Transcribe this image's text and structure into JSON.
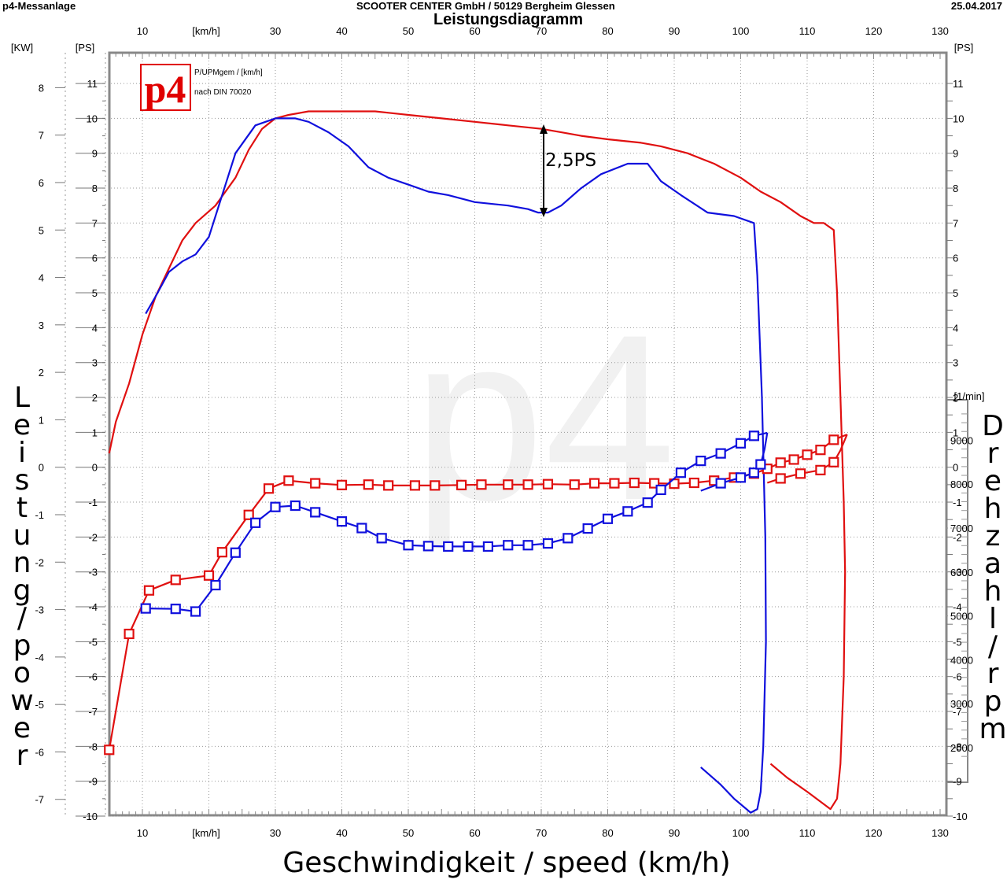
{
  "header": {
    "app_name": "p4-Messanlage",
    "company": "SCOOTER CENTER GmbH / 50129 Bergheim Glessen",
    "date": "25.04.2017"
  },
  "watermark": "p4",
  "logo": {
    "text": "p4",
    "color": "#e00000"
  },
  "legend_note": {
    "line1": "P/UPMgem / [km/h]",
    "line2": "nach DIN 70020"
  },
  "annotation": "2,5PS",
  "y_label_left_letters": [
    "L",
    "e",
    "i",
    "s",
    "t",
    "u",
    "n",
    "g",
    "/",
    "p",
    "o",
    "w",
    "e",
    "r"
  ],
  "y_label_right_letters": [
    "D",
    "r",
    "e",
    "h",
    "z",
    "a",
    "h",
    "l",
    "/",
    "r",
    "p",
    "m"
  ],
  "colors": {
    "red": "#e01010",
    "blue": "#1010dd",
    "grid": "#999999",
    "frame": "#888888"
  },
  "chart_data": {
    "type": "line",
    "title": "Leistungsdiagramm",
    "xlabel": "Geschwindigkeit / speed (km/h)",
    "x_unit": "[km/h]",
    "xlim": [
      5,
      130
    ],
    "x_ticks": [
      10,
      30,
      40,
      50,
      60,
      70,
      80,
      90,
      100,
      110,
      120,
      130
    ],
    "y_ps": {
      "unit": "[PS]",
      "lim": [
        -10,
        12
      ],
      "ticks": [
        -10,
        -9,
        -8,
        -7,
        -6,
        -5,
        -4,
        -3,
        -2,
        -1,
        0,
        1,
        2,
        3,
        4,
        5,
        6,
        7,
        8,
        9,
        10,
        11
      ]
    },
    "y_kw": {
      "unit": "[KW]",
      "ticks": [
        -7,
        -6,
        -5,
        -4,
        -3,
        -2,
        -1,
        0,
        1,
        2,
        3,
        4,
        5,
        6,
        7,
        8
      ]
    },
    "y_rpm": {
      "unit": "[1/min]",
      "ticks": [
        2000,
        3000,
        4000,
        5000,
        6000,
        7000,
        8000,
        9000
      ]
    },
    "power_series": [
      {
        "color": "red",
        "points": [
          [
            5,
            0.4
          ],
          [
            6,
            1.3
          ],
          [
            8,
            2.4
          ],
          [
            10,
            3.8
          ],
          [
            12,
            4.9
          ],
          [
            14,
            5.7
          ],
          [
            16,
            6.5
          ],
          [
            18,
            7.0
          ],
          [
            21,
            7.5
          ],
          [
            24,
            8.3
          ],
          [
            26,
            9.1
          ],
          [
            28,
            9.7
          ],
          [
            30,
            10.0
          ],
          [
            32,
            10.1
          ],
          [
            35,
            10.2
          ],
          [
            40,
            10.2
          ],
          [
            45,
            10.2
          ],
          [
            50,
            10.1
          ],
          [
            55,
            10.0
          ],
          [
            60,
            9.9
          ],
          [
            65,
            9.8
          ],
          [
            70,
            9.7
          ],
          [
            73,
            9.6
          ],
          [
            76,
            9.5
          ],
          [
            80,
            9.4
          ],
          [
            85,
            9.3
          ],
          [
            88,
            9.2
          ],
          [
            92,
            9.0
          ],
          [
            96,
            8.7
          ],
          [
            100,
            8.3
          ],
          [
            103,
            7.9
          ],
          [
            106,
            7.6
          ],
          [
            109,
            7.2
          ],
          [
            111,
            7.0
          ],
          [
            112.5,
            7.0
          ],
          [
            114,
            6.8
          ],
          [
            114.5,
            5.0
          ],
          [
            115,
            2.0
          ],
          [
            115.5,
            -1.0
          ],
          [
            115.7,
            -3.0
          ],
          [
            115.5,
            -6.0
          ],
          [
            115,
            -8.5
          ],
          [
            114.5,
            -9.5
          ],
          [
            113.5,
            -9.8
          ],
          [
            110,
            -9.3
          ],
          [
            107,
            -8.9
          ],
          [
            104.5,
            -8.5
          ]
        ]
      },
      {
        "color": "blue",
        "points": [
          [
            10.5,
            4.4
          ],
          [
            12,
            4.9
          ],
          [
            14,
            5.6
          ],
          [
            16,
            5.9
          ],
          [
            18,
            6.1
          ],
          [
            20,
            6.6
          ],
          [
            22,
            7.8
          ],
          [
            24,
            9.0
          ],
          [
            27,
            9.8
          ],
          [
            30,
            10.0
          ],
          [
            33,
            10.0
          ],
          [
            35,
            9.9
          ],
          [
            38,
            9.6
          ],
          [
            41,
            9.2
          ],
          [
            44,
            8.6
          ],
          [
            47,
            8.3
          ],
          [
            50,
            8.1
          ],
          [
            53,
            7.9
          ],
          [
            56,
            7.8
          ],
          [
            60,
            7.6
          ],
          [
            65,
            7.5
          ],
          [
            68,
            7.4
          ],
          [
            69.5,
            7.3
          ],
          [
            71,
            7.3
          ],
          [
            73,
            7.5
          ],
          [
            76,
            8.0
          ],
          [
            79,
            8.4
          ],
          [
            83,
            8.7
          ],
          [
            86,
            8.7
          ],
          [
            88,
            8.2
          ],
          [
            91,
            7.8
          ],
          [
            95,
            7.3
          ],
          [
            99,
            7.2
          ],
          [
            102,
            7.0
          ],
          [
            102.5,
            5.5
          ],
          [
            103.2,
            2.0
          ],
          [
            103.7,
            -2.0
          ],
          [
            103.8,
            -5.0
          ],
          [
            103.4,
            -8.0
          ],
          [
            103,
            -9.3
          ],
          [
            102.5,
            -9.8
          ],
          [
            101.5,
            -9.9
          ],
          [
            99,
            -9.5
          ],
          [
            97,
            -9.1
          ],
          [
            94,
            -8.6
          ]
        ]
      }
    ],
    "rpm_series": [
      {
        "color": "red",
        "marked": true,
        "points": [
          [
            5,
            1950
          ],
          [
            8,
            4590
          ],
          [
            11,
            5580
          ],
          [
            15,
            5820
          ],
          [
            20,
            5920
          ],
          [
            22,
            6450
          ],
          [
            26,
            7300
          ],
          [
            29,
            7900
          ],
          [
            32,
            8080
          ],
          [
            36,
            8020
          ],
          [
            40,
            7980
          ],
          [
            44,
            7990
          ],
          [
            47,
            7970
          ],
          [
            51,
            7970
          ],
          [
            54,
            7970
          ],
          [
            58,
            7980
          ],
          [
            61,
            7990
          ],
          [
            65,
            7990
          ],
          [
            68,
            7990
          ],
          [
            71,
            8000
          ],
          [
            75,
            7990
          ],
          [
            78,
            8020
          ],
          [
            81,
            8020
          ],
          [
            84,
            8030
          ],
          [
            87,
            8020
          ],
          [
            90,
            8010
          ],
          [
            93,
            8030
          ],
          [
            96,
            8080
          ],
          [
            99,
            8150
          ],
          [
            102,
            8240
          ],
          [
            104,
            8350
          ],
          [
            106,
            8490
          ],
          [
            108,
            8560
          ],
          [
            110,
            8670
          ],
          [
            112,
            8780
          ],
          [
            114,
            9010
          ],
          [
            116,
            9130
          ]
        ]
      },
      {
        "color": "red",
        "marked": true,
        "points": [
          [
            104,
            8030
          ],
          [
            106,
            8130
          ],
          [
            109,
            8240
          ],
          [
            112,
            8320
          ],
          [
            114,
            8500
          ],
          [
            115,
            8770
          ],
          [
            116,
            9130
          ]
        ]
      },
      {
        "color": "blue",
        "marked": true,
        "points": [
          [
            10.5,
            5170
          ],
          [
            15,
            5160
          ],
          [
            18,
            5100
          ],
          [
            21,
            5700
          ],
          [
            24,
            6440
          ],
          [
            27,
            7120
          ],
          [
            30,
            7480
          ],
          [
            33,
            7510
          ],
          [
            36,
            7360
          ],
          [
            40,
            7150
          ],
          [
            43,
            7000
          ],
          [
            46,
            6770
          ],
          [
            50,
            6610
          ],
          [
            53,
            6590
          ],
          [
            56,
            6580
          ],
          [
            59,
            6580
          ],
          [
            62,
            6580
          ],
          [
            65,
            6610
          ],
          [
            68,
            6610
          ],
          [
            71,
            6650
          ],
          [
            74,
            6770
          ],
          [
            77,
            6990
          ],
          [
            80,
            7210
          ],
          [
            83,
            7380
          ],
          [
            86,
            7580
          ],
          [
            88,
            7870
          ],
          [
            91,
            8260
          ],
          [
            94,
            8530
          ],
          [
            97,
            8700
          ],
          [
            100,
            8930
          ],
          [
            102,
            9100
          ],
          [
            104,
            9170
          ]
        ]
      },
      {
        "color": "blue",
        "marked": true,
        "points": [
          [
            94,
            7850
          ],
          [
            97,
            8020
          ],
          [
            100,
            8150
          ],
          [
            102,
            8260
          ],
          [
            103,
            8450
          ],
          [
            103.6,
            8800
          ],
          [
            104,
            9170
          ]
        ]
      }
    ]
  }
}
